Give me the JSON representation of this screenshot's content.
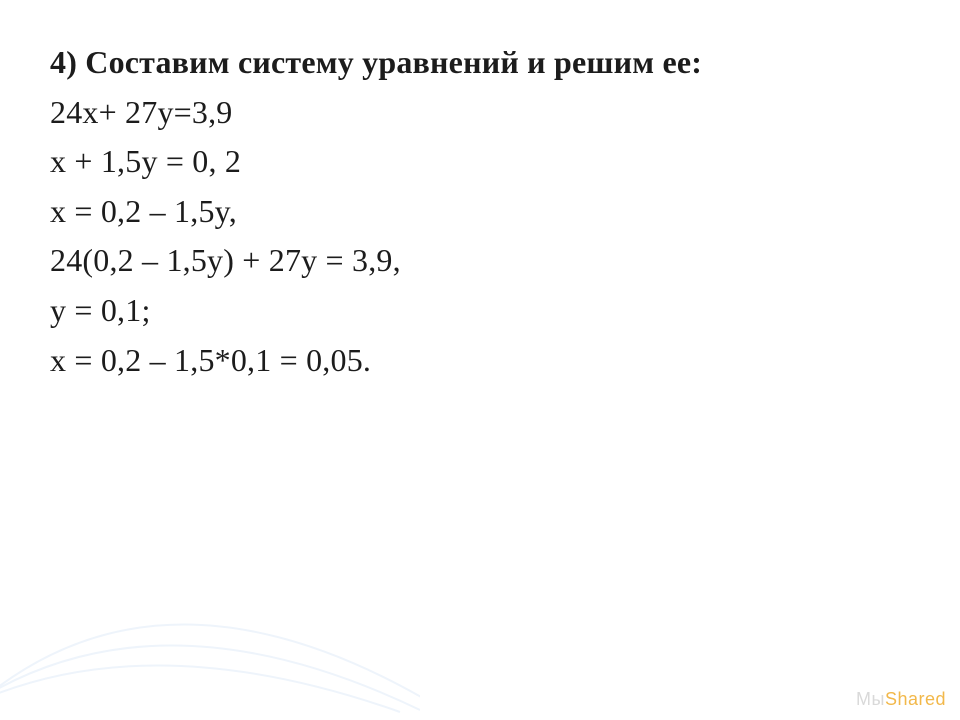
{
  "slide": {
    "text_color": "#1c1c1c",
    "background_color": "#ffffff",
    "font_family": "Georgia, Times New Roman, serif",
    "font_size_pt": 24,
    "lines": [
      {
        "bold_prefix": "4) Составим систему уравнений и решим ее:",
        "rest": ""
      },
      {
        "bold_prefix": "",
        "rest": "24x+ 27y=3,9"
      },
      {
        "bold_prefix": "",
        "rest": "x  + 1,5y = 0, 2"
      },
      {
        "bold_prefix": "",
        "rest": "x = 0,2 – 1,5y,"
      },
      {
        "bold_prefix": "",
        "rest": "24(0,2 – 1,5y) + 27y = 3,9,"
      },
      {
        "bold_prefix": "",
        "rest": "y = 0,1;"
      },
      {
        "bold_prefix": "",
        "rest": "x = 0,2 – 1,5*0,1 = 0,05."
      }
    ]
  },
  "decor": {
    "curves": {
      "stroke_color": "#eef4fb",
      "stroke_width": 2,
      "paths": [
        "M -40 250 Q 140 160 400 252",
        "M -40 252 Q 150 120 420 250",
        "M -30 250 Q 160 80 440 248"
      ]
    }
  },
  "watermark": {
    "dim_text": "Мы",
    "accent_text": "Shared",
    "dim_color": "#d9d9d9",
    "accent_color": "#f2b84a",
    "font_size_pt": 14
  }
}
